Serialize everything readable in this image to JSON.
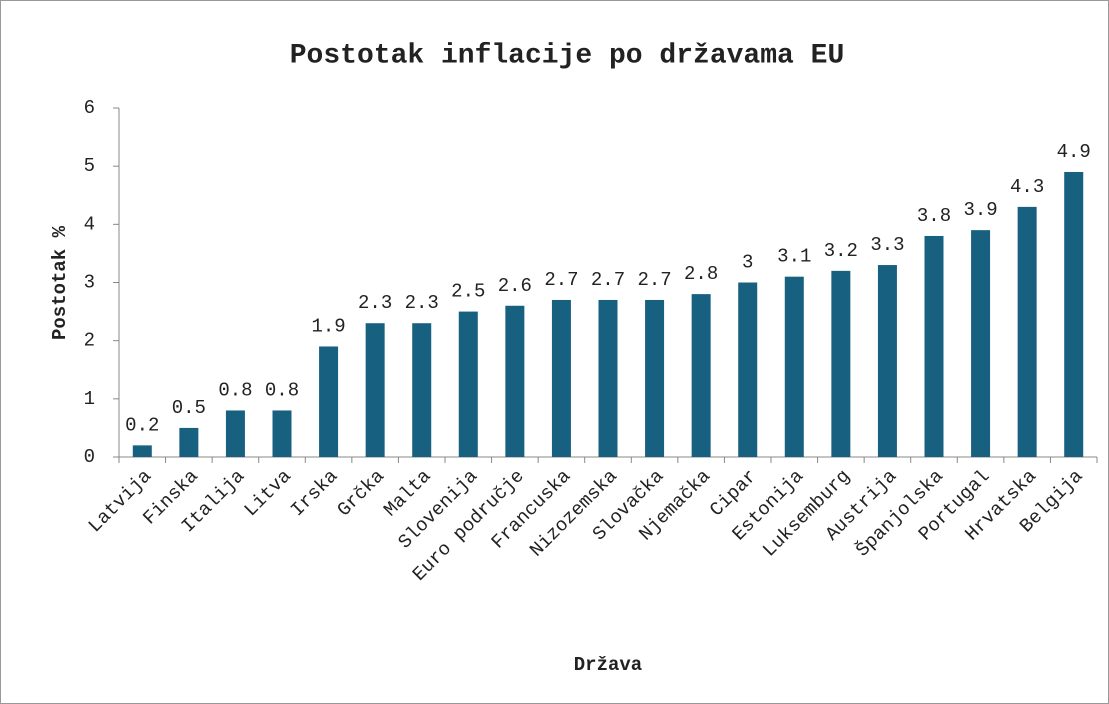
{
  "chart_data": {
    "type": "bar",
    "title": "Postotak inflacije po državama EU",
    "x_label": "Država",
    "y_label": "Postotak %",
    "categories": [
      "Latvija",
      "Finska",
      "Italija",
      "Litva",
      "Irska",
      "Grčka",
      "Malta",
      "Slovenija",
      "Euro područje",
      "Francuska",
      "Nizozemska",
      "Slovačka",
      "Njemačka",
      "Cipar",
      "Estonija",
      "Luksemburg",
      "Austrija",
      "Španjolska",
      "Portugal",
      "Hrvatska",
      "Belgija"
    ],
    "values": [
      0.2,
      0.5,
      0.8,
      0.8,
      1.9,
      2.3,
      2.3,
      2.5,
      2.6,
      2.7,
      2.7,
      2.7,
      2.8,
      3,
      3.1,
      3.2,
      3.3,
      3.8,
      3.9,
      4.3,
      4.9
    ],
    "color": "#17607f",
    "ylim": [
      0,
      6
    ],
    "yticks": [
      0,
      1,
      2,
      3,
      4,
      5,
      6
    ],
    "grid": false
  }
}
